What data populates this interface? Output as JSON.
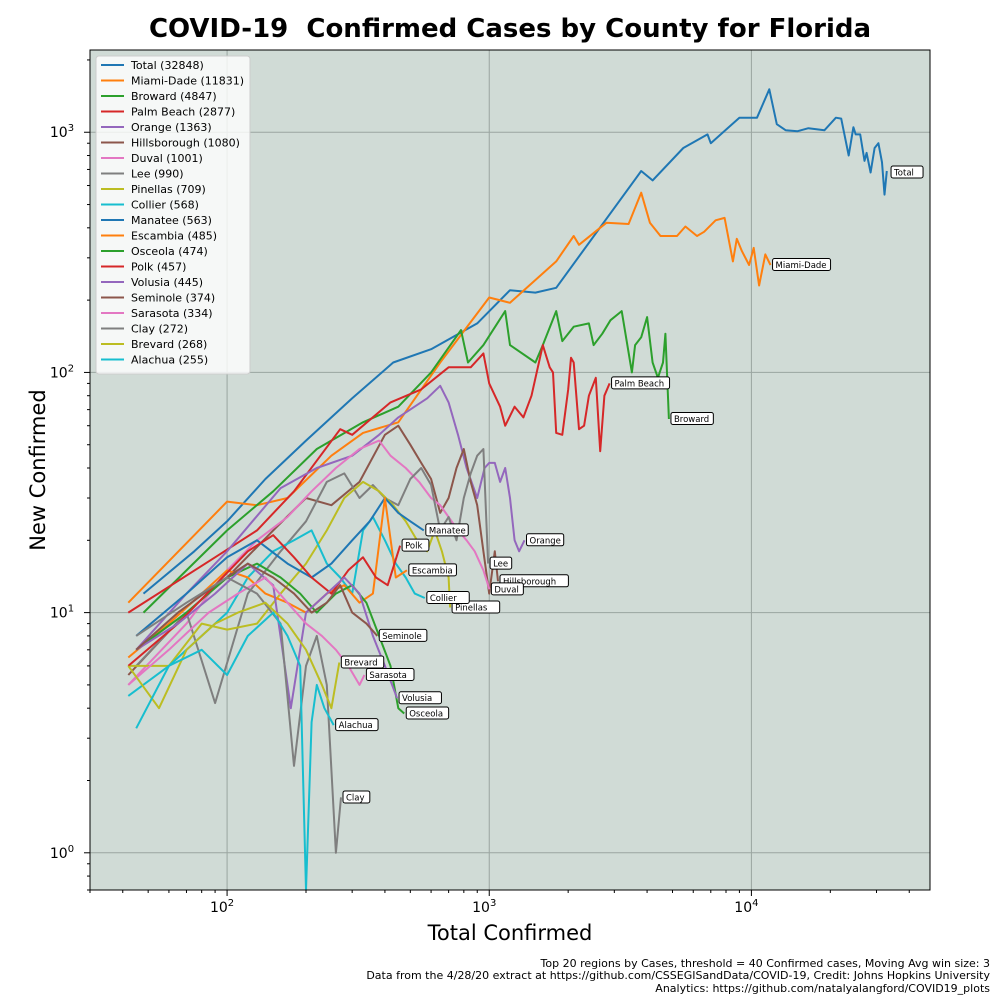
{
  "chart_data": {
    "type": "line",
    "title": "COVID-19  Confirmed Cases by County for Florida",
    "xlabel": "Total Confirmed",
    "ylabel": "New Confirmed",
    "xscale": "log",
    "yscale": "log",
    "xlim": [
      30,
      48000
    ],
    "ylim": [
      0.7,
      2200
    ],
    "x_ticks": [
      {
        "v": 100,
        "label": "10",
        "exp": "2"
      },
      {
        "v": 1000,
        "label": "10",
        "exp": "3"
      },
      {
        "v": 10000,
        "label": "10",
        "exp": "4"
      }
    ],
    "y_ticks": [
      {
        "v": 1,
        "label": "10",
        "exp": "0"
      },
      {
        "v": 10,
        "label": "10",
        "exp": "1"
      },
      {
        "v": 100,
        "label": "10",
        "exp": "2"
      },
      {
        "v": 1000,
        "label": "10",
        "exp": "3"
      }
    ],
    "grid": true,
    "legend_position": "top-left",
    "colors": [
      "#1f77b4",
      "#ff7f0e",
      "#2ca02c",
      "#d62728",
      "#9467bd",
      "#8c564b",
      "#e377c2",
      "#7f7f7f",
      "#bcbd22",
      "#17becf"
    ],
    "background": "#d0dbd6",
    "series": [
      {
        "name": "Total",
        "legend": "Total (32848)",
        "label": "Total",
        "label_at": [
          33500,
          680
        ],
        "x": [
          48,
          75,
          100,
          140,
          200,
          300,
          430,
          600,
          900,
          1200,
          1500,
          1800,
          3800,
          4200,
          5500,
          6800,
          7000,
          9000,
          10500,
          11700,
          12500,
          13500,
          15000,
          16500,
          19000,
          21000,
          22000,
          23500,
          24500,
          25000,
          26000,
          27000,
          27500,
          28500,
          29500,
          30500,
          31500,
          32200,
          32848
        ],
        "y": [
          12,
          18,
          24,
          36,
          52,
          78,
          110,
          125,
          160,
          220,
          215,
          225,
          690,
          630,
          860,
          980,
          900,
          1150,
          1150,
          1510,
          1080,
          1020,
          1010,
          1040,
          1020,
          1150,
          1140,
          800,
          1050,
          980,
          980,
          760,
          820,
          680,
          860,
          900,
          750,
          550,
          690
        ]
      },
      {
        "name": "Miami-Dade",
        "legend": "Miami-Dade (11831)",
        "label": "Miami-Dade",
        "label_at": [
          11831,
          280
        ],
        "x": [
          42,
          100,
          130,
          170,
          250,
          330,
          450,
          650,
          1000,
          1200,
          1800,
          2100,
          2200,
          2800,
          3400,
          3800,
          4100,
          4500,
          5200,
          5600,
          6200,
          6600,
          7300,
          7900,
          8500,
          8800,
          9200,
          9800,
          10200,
          10700,
          11300,
          11831
        ],
        "y": [
          11,
          29,
          28,
          30,
          45,
          56,
          62,
          110,
          205,
          195,
          290,
          370,
          340,
          420,
          415,
          560,
          420,
          370,
          370,
          405,
          370,
          385,
          430,
          440,
          290,
          360,
          320,
          280,
          330,
          230,
          310,
          280
        ]
      },
      {
        "name": "Broward",
        "legend": "Broward (4847)",
        "label": "Broward",
        "label_at": [
          4847,
          64
        ],
        "x": [
          48,
          100,
          150,
          220,
          330,
          450,
          600,
          780,
          830,
          950,
          1150,
          1200,
          1500,
          1600,
          1800,
          1900,
          2100,
          2400,
          2500,
          2700,
          2900,
          3200,
          3500,
          3600,
          3800,
          4000,
          4200,
          4400,
          4600,
          4700,
          4847
        ],
        "y": [
          10,
          22,
          32,
          48,
          62,
          72,
          100,
          150,
          110,
          130,
          180,
          130,
          110,
          130,
          180,
          135,
          155,
          160,
          130,
          145,
          165,
          180,
          100,
          130,
          140,
          170,
          110,
          95,
          110,
          145,
          64
        ]
      },
      {
        "name": "Palm Beach",
        "legend": "Palm Beach (2877)",
        "label": "Palm Beach",
        "label_at": [
          2877,
          90
        ],
        "x": [
          42,
          90,
          130,
          180,
          270,
          300,
          420,
          550,
          700,
          850,
          950,
          1000,
          1100,
          1150,
          1250,
          1350,
          1450,
          1600,
          1700,
          1750,
          1800,
          1900,
          2000,
          2050,
          2100,
          2200,
          2300,
          2400,
          2550,
          2650,
          2750,
          2877
        ],
        "y": [
          10,
          17,
          22,
          32,
          58,
          55,
          75,
          85,
          105,
          105,
          120,
          90,
          72,
          60,
          72,
          65,
          80,
          130,
          105,
          100,
          56,
          55,
          85,
          115,
          110,
          58,
          60,
          80,
          95,
          47,
          80,
          90
        ]
      },
      {
        "name": "Orange",
        "legend": "Orange (1363)",
        "label": "Orange",
        "label_at": [
          1363,
          20
        ],
        "x": [
          45,
          70,
          100,
          160,
          220,
          300,
          380,
          450,
          580,
          650,
          700,
          760,
          820,
          900,
          960,
          1000,
          1050,
          1100,
          1150,
          1200,
          1250,
          1300,
          1363
        ],
        "y": [
          7,
          12,
          18,
          33,
          40,
          45,
          55,
          65,
          78,
          88,
          75,
          55,
          40,
          30,
          40,
          42,
          42,
          35,
          40,
          30,
          20,
          18,
          20
        ]
      },
      {
        "name": "Hillsborough",
        "legend": "Hillsborough (1080)",
        "label": "Hillsborough",
        "label_at": [
          1080,
          13.5
        ],
        "x": [
          42,
          70,
          100,
          150,
          200,
          250,
          320,
          400,
          450,
          500,
          550,
          600,
          650,
          700,
          750,
          800,
          850,
          900,
          950,
          1000,
          1050,
          1080
        ],
        "y": [
          5.5,
          10,
          14,
          22,
          30,
          28,
          35,
          55,
          60,
          50,
          42,
          36,
          26,
          30,
          40,
          48,
          35,
          28,
          18,
          12,
          18,
          13.5
        ]
      },
      {
        "name": "Duval",
        "legend": "Duval (1001)",
        "label": "Duval",
        "label_at": [
          1001,
          12.5
        ],
        "x": [
          42,
          70,
          100,
          130,
          170,
          210,
          260,
          320,
          380,
          420,
          480,
          540,
          600,
          650,
          700,
          760,
          820,
          880,
          950,
          1001
        ],
        "y": [
          5,
          9,
          15,
          20,
          25,
          32,
          40,
          48,
          52,
          45,
          40,
          35,
          30,
          28,
          25,
          22,
          20,
          18,
          15,
          12.5
        ]
      },
      {
        "name": "Lee",
        "legend": "Lee (990)",
        "label": "Lee",
        "label_at": [
          990,
          16
        ],
        "x": [
          45,
          70,
          90,
          120,
          160,
          200,
          240,
          280,
          320,
          360,
          400,
          450,
          500,
          550,
          600,
          650,
          700,
          750,
          800,
          850,
          900,
          950,
          990
        ],
        "y": [
          6,
          10,
          4.2,
          12,
          18,
          24,
          35,
          38,
          30,
          34,
          30,
          28,
          36,
          40,
          34,
          22,
          25,
          20,
          30,
          38,
          45,
          48,
          16
        ]
      },
      {
        "name": "Pinellas",
        "legend": "Pinellas (709)",
        "label": "Pinellas",
        "label_at": [
          709,
          10.5
        ],
        "x": [
          42,
          60,
          80,
          100,
          130,
          160,
          200,
          240,
          280,
          330,
          380,
          430,
          480,
          530,
          580,
          620,
          660,
          700,
          709
        ],
        "y": [
          6,
          6,
          9,
          8.5,
          9,
          12,
          16,
          22,
          30,
          35,
          32,
          28,
          24,
          20,
          18,
          22,
          18,
          14,
          10.5
        ]
      },
      {
        "name": "Collier",
        "legend": "Collier (568)",
        "label": "Collier",
        "label_at": [
          568,
          11.5
        ],
        "x": [
          42,
          60,
          80,
          100,
          120,
          150,
          180,
          210,
          240,
          270,
          300,
          330,
          360,
          400,
          440,
          480,
          520,
          568
        ],
        "y": [
          4.5,
          6,
          8,
          10,
          14,
          18,
          20,
          22,
          16,
          14,
          12,
          22,
          25,
          20,
          16,
          14,
          12,
          11.5
        ]
      },
      {
        "name": "Manatee",
        "legend": "Manatee (563)",
        "label": "Manatee",
        "label_at": [
          563,
          22
        ],
        "x": [
          45,
          70,
          100,
          130,
          170,
          210,
          250,
          300,
          350,
          400,
          450,
          500,
          563
        ],
        "y": [
          8,
          12,
          17,
          20,
          16,
          14,
          16,
          20,
          24,
          30,
          26,
          24,
          22
        ]
      },
      {
        "name": "Escambia",
        "legend": "Escambia (485)",
        "label": "Escambia",
        "label_at": [
          485,
          15
        ],
        "x": [
          42,
          60,
          80,
          100,
          120,
          140,
          170,
          200,
          240,
          280,
          320,
          360,
          400,
          440,
          485
        ],
        "y": [
          6.5,
          9,
          12,
          15,
          14,
          12,
          11,
          10,
          12,
          13,
          11,
          12,
          30,
          14,
          15
        ]
      },
      {
        "name": "Osceola",
        "legend": "Osceola (474)",
        "label": "Osceola",
        "label_at": [
          474,
          3.8
        ],
        "x": [
          45,
          70,
          100,
          130,
          160,
          190,
          220,
          260,
          300,
          340,
          380,
          420,
          450,
          474
        ],
        "y": [
          7,
          10,
          14,
          16,
          14,
          12,
          10,
          12,
          13,
          11,
          8,
          6,
          4,
          3.8
        ]
      },
      {
        "name": "Polk",
        "legend": "Polk (457)",
        "label": "Polk",
        "label_at": [
          457,
          19
        ],
        "x": [
          42,
          65,
          90,
          120,
          150,
          180,
          210,
          250,
          290,
          330,
          370,
          410,
          457
        ],
        "y": [
          6,
          9,
          13,
          18,
          21,
          17,
          14,
          12,
          15,
          17,
          14,
          13,
          19
        ]
      },
      {
        "name": "Volusia",
        "legend": "Volusia (445)",
        "label": "Volusia",
        "label_at": [
          445,
          4.4
        ],
        "x": [
          45,
          65,
          90,
          120,
          150,
          175,
          200,
          240,
          280,
          320,
          360,
          400,
          445
        ],
        "y": [
          7,
          9,
          12,
          16,
          13,
          4,
          10,
          12,
          14,
          12,
          8,
          6,
          4.4
        ]
      },
      {
        "name": "Seminole",
        "legend": "Seminole (374)",
        "label": "Seminole",
        "label_at": [
          374,
          8
        ],
        "x": [
          45,
          65,
          90,
          120,
          150,
          180,
          210,
          240,
          270,
          300,
          340,
          374
        ],
        "y": [
          7,
          10,
          13,
          16,
          14,
          12,
          10,
          11,
          13,
          10,
          9,
          8
        ]
      },
      {
        "name": "Sarasota",
        "legend": "Sarasota (334)",
        "label": "Sarasota",
        "label_at": [
          334,
          5.5
        ],
        "x": [
          42,
          60,
          85,
          110,
          140,
          170,
          200,
          230,
          260,
          290,
          320,
          334
        ],
        "y": [
          5,
          7,
          10,
          12,
          14,
          11,
          9,
          8,
          7,
          6,
          5,
          5.5
        ]
      },
      {
        "name": "Clay",
        "legend": "Clay (272)",
        "label": "Clay",
        "label_at": [
          272,
          1.7
        ],
        "x": [
          45,
          70,
          100,
          130,
          160,
          180,
          200,
          220,
          240,
          260,
          272
        ],
        "y": [
          8,
          11,
          14,
          12,
          9,
          2.3,
          6,
          8,
          5,
          1,
          1.7
        ]
      },
      {
        "name": "Brevard",
        "legend": "Brevard (268)",
        "label": "Brevard",
        "label_at": [
          268,
          6.2
        ],
        "x": [
          42,
          55,
          70,
          90,
          110,
          140,
          170,
          200,
          230,
          250,
          268
        ],
        "y": [
          6,
          4,
          7,
          9,
          10,
          11,
          9,
          7,
          5,
          4,
          6.2
        ]
      },
      {
        "name": "Alachua",
        "legend": "Alachua (255)",
        "label": "Alachua",
        "label_at": [
          255,
          3.4
        ],
        "x": [
          45,
          60,
          80,
          100,
          120,
          150,
          170,
          190,
          200,
          210,
          220,
          235,
          255
        ],
        "y": [
          3.3,
          6,
          7,
          5.5,
          8,
          10,
          8,
          6,
          0.7,
          3.5,
          5,
          4,
          3.4
        ]
      }
    ]
  },
  "footnotes": [
    "Top 20 regions by Cases, threshold = 40 Confirmed cases, Moving Avg win size: 3",
    "Data from the 4/28/20 extract at https://github.com/CSSEGISandData/COVID-19, Credit: Johns Hopkins University",
    "Analytics: https://github.com/natalyalangford/COVID19_plots"
  ]
}
